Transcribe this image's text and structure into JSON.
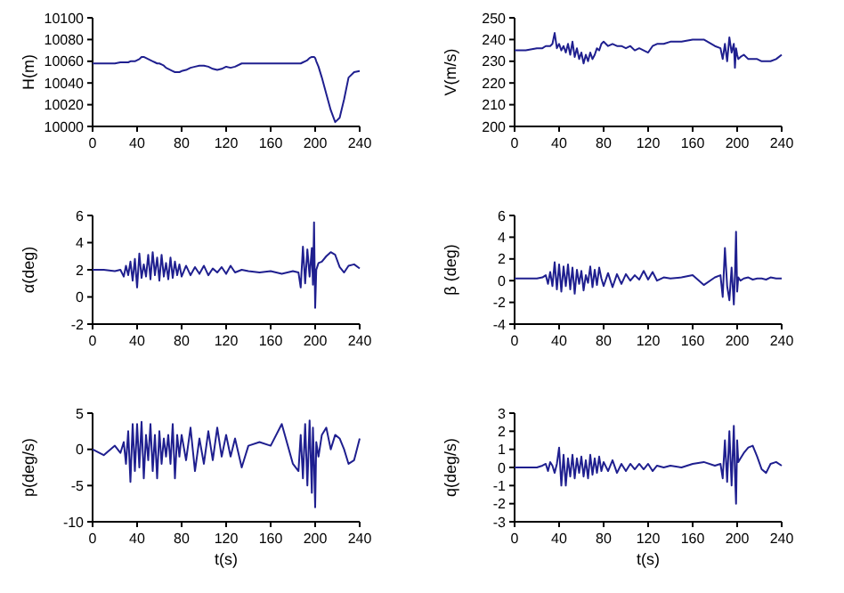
{
  "chart_data": [
    {
      "type": "line",
      "x": [
        0,
        10,
        20,
        25,
        28,
        30,
        32,
        34,
        36,
        38,
        40,
        42,
        44,
        46,
        48,
        50,
        52,
        54,
        56,
        58,
        60,
        62,
        64,
        66,
        68,
        70,
        72,
        74,
        76,
        78,
        80,
        84,
        88,
        92,
        96,
        100,
        104,
        108,
        112,
        116,
        120,
        124,
        128,
        134,
        140,
        150,
        160,
        170,
        180,
        185,
        187,
        189,
        191,
        193,
        195,
        197,
        198,
        199,
        200,
        201,
        203,
        206,
        210,
        214,
        218,
        222,
        226,
        230,
        235,
        240
      ],
      "values": [
        10058,
        10058,
        10058,
        10059,
        10059,
        10059,
        10059,
        10060,
        10060,
        10060,
        10061,
        10062,
        10064,
        10064,
        10063,
        10062,
        10061,
        10060,
        10059,
        10058,
        10058,
        10057,
        10056,
        10054,
        10053,
        10052,
        10051,
        10050,
        10050,
        10050,
        10051,
        10052,
        10054,
        10055,
        10056,
        10056,
        10055,
        10053,
        10052,
        10053,
        10055,
        10054,
        10055,
        10058,
        10058,
        10058,
        10058,
        10058,
        10058,
        10058,
        10058,
        10059,
        10060,
        10061,
        10063,
        10064,
        10064,
        10064,
        10063,
        10060,
        10055,
        10045,
        10030,
        10015,
        10004,
        10008,
        10025,
        10045,
        10050,
        10051
      ],
      "color": "#1f1f8f",
      "ylabel": "H(m)",
      "xlim": [
        0,
        240
      ],
      "xticks": [
        0,
        40,
        80,
        120,
        160,
        200,
        240
      ],
      "ylim": [
        10000,
        10100
      ],
      "yticks": [
        10000,
        10020,
        10040,
        10060,
        10080,
        10100
      ]
    },
    {
      "type": "line",
      "x": [
        0,
        10,
        20,
        25,
        28,
        30,
        32,
        34,
        36,
        38,
        40,
        42,
        44,
        46,
        48,
        50,
        52,
        54,
        56,
        58,
        60,
        62,
        64,
        66,
        68,
        70,
        72,
        74,
        76,
        78,
        80,
        84,
        88,
        92,
        96,
        100,
        104,
        108,
        112,
        116,
        120,
        124,
        128,
        134,
        140,
        150,
        160,
        170,
        180,
        185,
        187,
        189,
        191,
        193,
        195,
        197,
        198,
        199,
        200,
        201,
        203,
        206,
        210,
        214,
        218,
        222,
        226,
        230,
        235,
        240
      ],
      "values": [
        235,
        235,
        236,
        236,
        237,
        237,
        237,
        238,
        243,
        236,
        238,
        235,
        237,
        234,
        238,
        233,
        239,
        232,
        236,
        231,
        234,
        229,
        233,
        230,
        234,
        231,
        233,
        236,
        235,
        238,
        239,
        237,
        238,
        237,
        237,
        236,
        237,
        235,
        236,
        235,
        234,
        237,
        238,
        238,
        239,
        239,
        240,
        240,
        237,
        236,
        231,
        238,
        230,
        241,
        234,
        238,
        227,
        236,
        233,
        231,
        232,
        233,
        231,
        231,
        231,
        230,
        230,
        230,
        231,
        233
      ],
      "color": "#1f1f8f",
      "ylabel": "V(m/s)",
      "xlim": [
        0,
        240
      ],
      "xticks": [
        0,
        40,
        80,
        120,
        160,
        200,
        240
      ],
      "ylim": [
        200,
        250
      ],
      "yticks": [
        200,
        210,
        220,
        230,
        240,
        250
      ]
    },
    {
      "type": "line",
      "x": [
        0,
        10,
        20,
        25,
        28,
        30,
        32,
        34,
        36,
        38,
        40,
        42,
        44,
        46,
        48,
        50,
        52,
        54,
        56,
        58,
        60,
        62,
        64,
        66,
        68,
        70,
        72,
        74,
        76,
        78,
        80,
        84,
        88,
        92,
        96,
        100,
        104,
        108,
        112,
        116,
        120,
        124,
        128,
        134,
        140,
        150,
        160,
        170,
        180,
        185,
        187,
        189,
        191,
        193,
        195,
        197,
        198,
        199,
        200,
        201,
        203,
        206,
        210,
        214,
        218,
        222,
        226,
        230,
        235,
        240
      ],
      "values": [
        2,
        2,
        1.9,
        2,
        1.5,
        2.3,
        1.6,
        2.6,
        1.2,
        2.8,
        0.7,
        3.2,
        1.4,
        2.4,
        1.5,
        3.1,
        1.3,
        3.3,
        1.6,
        2.9,
        1.2,
        3.1,
        1.5,
        2.5,
        1.3,
        2.9,
        1.4,
        2.6,
        1.6,
        2.4,
        1.5,
        2.3,
        1.6,
        2.2,
        1.7,
        2.3,
        1.6,
        2.1,
        1.8,
        2.2,
        1.7,
        2.3,
        1.8,
        2,
        1.9,
        1.8,
        1.9,
        1.7,
        1.9,
        1.8,
        0.7,
        3.7,
        1,
        3.5,
        1.5,
        3.6,
        0.9,
        5.5,
        -0.8,
        2,
        2.5,
        2.6,
        3,
        3.3,
        3.1,
        2.2,
        1.8,
        2.3,
        2.4,
        2.1
      ],
      "color": "#1f1f8f",
      "ylabel": "α(deg)",
      "xlim": [
        0,
        240
      ],
      "xticks": [
        0,
        40,
        80,
        120,
        160,
        200,
        240
      ],
      "ylim": [
        -2,
        6
      ],
      "yticks": [
        -2,
        0,
        2,
        4,
        6
      ]
    },
    {
      "type": "line",
      "x": [
        0,
        10,
        20,
        25,
        28,
        30,
        32,
        34,
        36,
        38,
        40,
        42,
        44,
        46,
        48,
        50,
        52,
        54,
        56,
        58,
        60,
        62,
        64,
        66,
        68,
        70,
        72,
        74,
        76,
        78,
        80,
        84,
        88,
        92,
        96,
        100,
        104,
        108,
        112,
        116,
        120,
        124,
        128,
        134,
        140,
        150,
        160,
        170,
        180,
        185,
        187,
        189,
        191,
        193,
        195,
        197,
        198,
        199,
        200,
        201,
        203,
        206,
        210,
        214,
        218,
        222,
        226,
        230,
        235,
        240
      ],
      "values": [
        0.2,
        0.2,
        0.2,
        0.3,
        0.5,
        -0.3,
        0.8,
        -0.5,
        1.7,
        -0.8,
        1.5,
        -1,
        1.3,
        -0.5,
        1.5,
        -0.8,
        1.2,
        -1.2,
        1,
        -0.3,
        0.9,
        -0.9,
        0.5,
        -0.2,
        1.3,
        -0.6,
        1,
        -0.4,
        1.2,
        0.2,
        -0.5,
        0.7,
        -0.6,
        0.6,
        -0.3,
        0.6,
        0,
        0.5,
        0.1,
        0.9,
        0.1,
        0.8,
        0,
        0.3,
        0.2,
        0.3,
        0.5,
        -0.4,
        0.3,
        0.5,
        -1.5,
        3,
        -0.5,
        -1.8,
        1.2,
        -2.2,
        0.5,
        4.5,
        -1,
        0.3,
        0,
        0.2,
        0.3,
        0.1,
        0.2,
        0.2,
        0.1,
        0.3,
        0.2,
        0.2
      ],
      "color": "#1f1f8f",
      "ylabel": "β (deg)",
      "xlim": [
        0,
        240
      ],
      "xticks": [
        0,
        40,
        80,
        120,
        160,
        200,
        240
      ],
      "ylim": [
        -4,
        6
      ],
      "yticks": [
        -4,
        -2,
        0,
        2,
        4,
        6
      ]
    },
    {
      "type": "line",
      "x": [
        0,
        10,
        20,
        25,
        28,
        30,
        32,
        34,
        36,
        38,
        40,
        42,
        44,
        46,
        48,
        50,
        52,
        54,
        56,
        58,
        60,
        62,
        64,
        66,
        68,
        70,
        72,
        74,
        76,
        78,
        80,
        84,
        88,
        92,
        96,
        100,
        104,
        108,
        112,
        116,
        120,
        124,
        128,
        134,
        140,
        150,
        160,
        170,
        180,
        185,
        187,
        189,
        191,
        193,
        195,
        197,
        198,
        199,
        200,
        201,
        203,
        206,
        210,
        214,
        218,
        222,
        226,
        230,
        235,
        240
      ],
      "values": [
        0,
        -0.8,
        0.5,
        -0.5,
        1,
        -2,
        2.5,
        -4.5,
        3.5,
        -3,
        3.5,
        -2.5,
        3.8,
        -4,
        2,
        -1.5,
        3.5,
        -3,
        2,
        -4,
        2.5,
        -2,
        1.5,
        -1,
        2,
        -2,
        3.5,
        -4,
        2,
        -1,
        2,
        -1.5,
        3,
        -3,
        1.5,
        -2,
        2.5,
        -1.5,
        3,
        -1,
        2,
        -1,
        1.5,
        -2.5,
        0.5,
        1,
        0.5,
        3.5,
        -2,
        -3,
        2,
        -4,
        3.5,
        -5,
        4,
        -6,
        3,
        -2,
        -8,
        1,
        -1,
        2,
        3,
        0,
        2,
        1.5,
        0,
        -2,
        -1.5,
        1.5
      ],
      "color": "#1f1f8f",
      "ylabel": "p(deg/s)",
      "xlabel": "t(s)",
      "xlim": [
        0,
        240
      ],
      "xticks": [
        0,
        40,
        80,
        120,
        160,
        200,
        240
      ],
      "ylim": [
        -10,
        5
      ],
      "yticks": [
        -10,
        -5,
        0,
        5
      ]
    },
    {
      "type": "line",
      "x": [
        0,
        10,
        20,
        25,
        28,
        30,
        32,
        34,
        36,
        38,
        40,
        42,
        44,
        46,
        48,
        50,
        52,
        54,
        56,
        58,
        60,
        62,
        64,
        66,
        68,
        70,
        72,
        74,
        76,
        78,
        80,
        84,
        88,
        92,
        96,
        100,
        104,
        108,
        112,
        116,
        120,
        124,
        128,
        134,
        140,
        150,
        160,
        170,
        180,
        185,
        187,
        189,
        191,
        193,
        195,
        197,
        198,
        199,
        200,
        201,
        203,
        206,
        210,
        214,
        218,
        222,
        226,
        230,
        235,
        240
      ],
      "values": [
        0,
        0,
        0,
        0.1,
        0.2,
        -0.2,
        0.3,
        0.1,
        -0.3,
        0.2,
        1.1,
        -1,
        0.7,
        -1,
        0.5,
        -0.5,
        0.7,
        -0.6,
        0.5,
        -0.3,
        0.6,
        -0.5,
        0.4,
        -0.6,
        0.7,
        -0.4,
        0.5,
        -0.3,
        0.6,
        -0.2,
        0.3,
        -0.2,
        0.4,
        -0.3,
        0.2,
        -0.2,
        0.2,
        -0.1,
        0.2,
        -0.1,
        0.2,
        -0.2,
        0.1,
        0,
        0.1,
        0,
        0.2,
        0.3,
        0.1,
        0.2,
        -0.6,
        1.5,
        -0.8,
        2,
        -1,
        2.3,
        -0.3,
        -2,
        1.5,
        0.3,
        0.5,
        0.8,
        1.1,
        1.2,
        0.6,
        -0.1,
        -0.3,
        0.2,
        0.3,
        0.1
      ],
      "color": "#1f1f8f",
      "ylabel": "q(deg/s)",
      "xlabel": "t(s)",
      "xlim": [
        0,
        240
      ],
      "xticks": [
        0,
        40,
        80,
        120,
        160,
        200,
        240
      ],
      "ylim": [
        -3,
        3
      ],
      "yticks": [
        -3,
        -2,
        -1,
        0,
        1,
        2,
        3
      ]
    }
  ]
}
